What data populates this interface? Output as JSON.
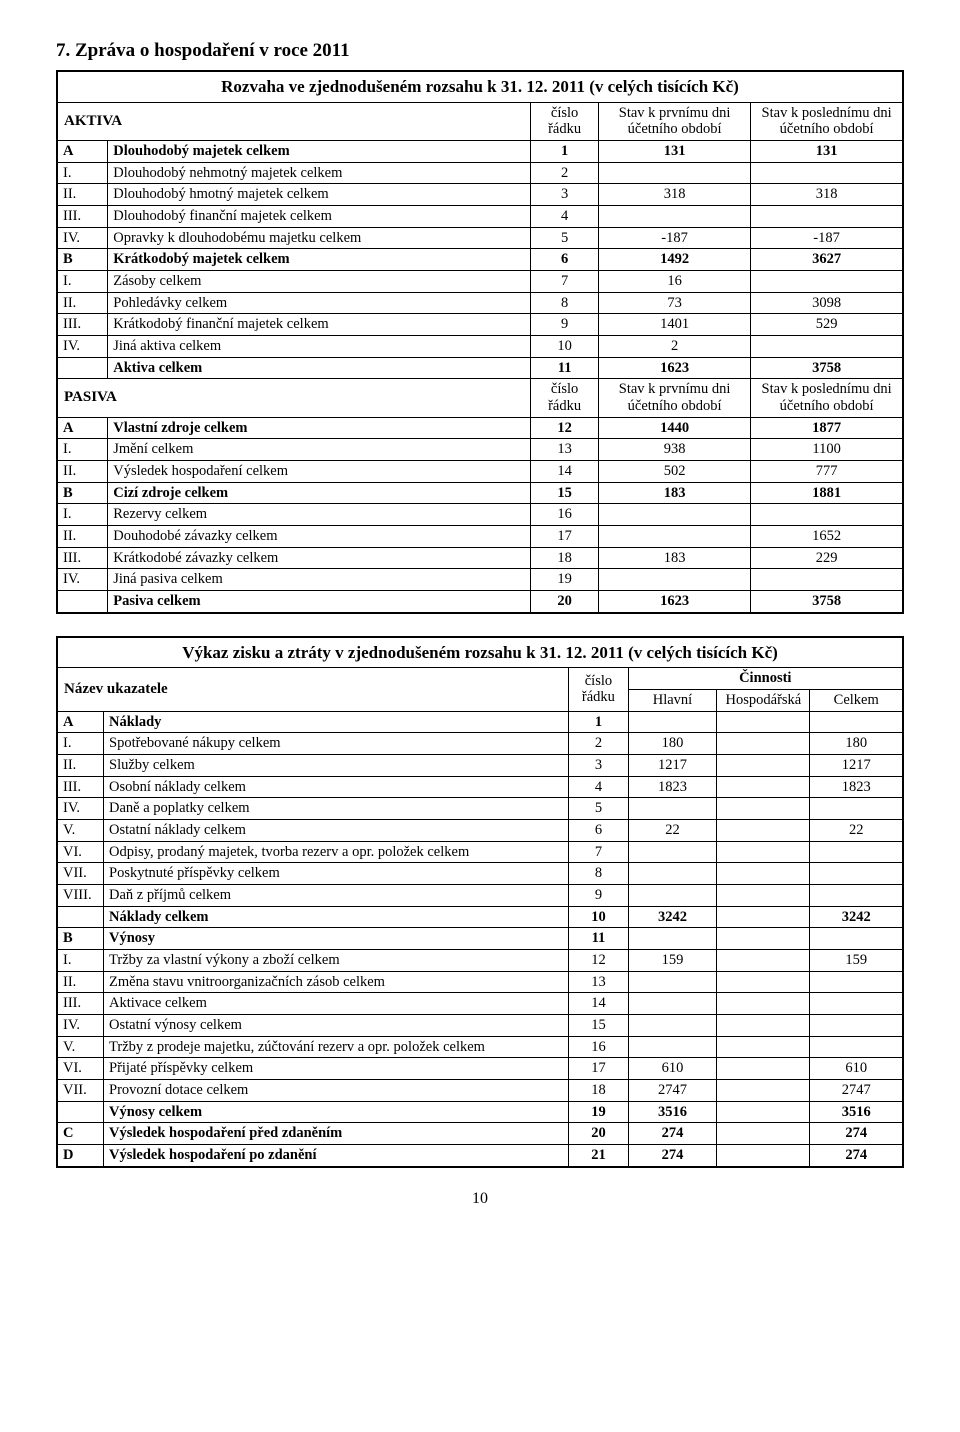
{
  "section_title": "7. Zpráva o hospodaření v roce 2011",
  "page_number": "10",
  "table1": {
    "caption": "Rozvaha ve zjednodušeném rozsahu k 31. 12. 2011 (v celých tisících Kč)",
    "head_aktiva": "AKTIVA",
    "head_pasiva": "PASIVA",
    "head_cislo": "číslo řádku",
    "head_first": "Stav k prvnímu dni účetního období",
    "head_last": "Stav k poslednímu dni účetního období",
    "aktiva_rows": [
      {
        "code": "A",
        "label": "Dlouhodobý majetek celkem",
        "n": "1",
        "a": "131",
        "b": "131",
        "bold": true
      },
      {
        "code": "I.",
        "label": "Dlouhodobý nehmotný majetek celkem",
        "n": "2",
        "a": "",
        "b": ""
      },
      {
        "code": "II.",
        "label": "Dlouhodobý hmotný majetek celkem",
        "n": "3",
        "a": "318",
        "b": "318"
      },
      {
        "code": "III.",
        "label": "Dlouhodobý finanční majetek celkem",
        "n": "4",
        "a": "",
        "b": ""
      },
      {
        "code": "IV.",
        "label": "Opravky k dlouhodobému majetku celkem",
        "n": "5",
        "a": "-187",
        "b": "-187"
      },
      {
        "code": "B",
        "label": "Krátkodobý majetek celkem",
        "n": "6",
        "a": "1492",
        "b": "3627",
        "bold": true
      },
      {
        "code": "I.",
        "label": "Zásoby celkem",
        "n": "7",
        "a": "16",
        "b": ""
      },
      {
        "code": "II.",
        "label": "Pohledávky celkem",
        "n": "8",
        "a": "73",
        "b": "3098"
      },
      {
        "code": "III.",
        "label": "Krátkodobý finanční majetek celkem",
        "n": "9",
        "a": "1401",
        "b": "529"
      },
      {
        "code": "IV.",
        "label": "Jiná aktiva celkem",
        "n": "10",
        "a": "2",
        "b": ""
      },
      {
        "code": "",
        "label": "Aktiva celkem",
        "n": "11",
        "a": "1623",
        "b": "3758",
        "bold": true
      }
    ],
    "pasiva_rows": [
      {
        "code": "A",
        "label": "Vlastní zdroje celkem",
        "n": "12",
        "a": "1440",
        "b": "1877",
        "bold": true
      },
      {
        "code": "I.",
        "label": "Jmění celkem",
        "n": "13",
        "a": "938",
        "b": "1100"
      },
      {
        "code": "II.",
        "label": "Výsledek hospodaření celkem",
        "n": "14",
        "a": "502",
        "b": "777"
      },
      {
        "code": "B",
        "label": "Cizí zdroje celkem",
        "n": "15",
        "a": "183",
        "b": "1881",
        "bold": true
      },
      {
        "code": "I.",
        "label": "Rezervy celkem",
        "n": "16",
        "a": "",
        "b": ""
      },
      {
        "code": "II.",
        "label": "Douhodobé závazky celkem",
        "n": "17",
        "a": "",
        "b": "1652"
      },
      {
        "code": "III.",
        "label": "Krátkodobé závazky celkem",
        "n": "18",
        "a": "183",
        "b": "229"
      },
      {
        "code": "IV.",
        "label": "Jiná pasiva celkem",
        "n": "19",
        "a": "",
        "b": ""
      },
      {
        "code": "",
        "label": "Pasiva celkem",
        "n": "20",
        "a": "1623",
        "b": "3758",
        "bold": true
      }
    ]
  },
  "table2": {
    "caption": "Výkaz zisku a ztráty v zjednodušeném rozsahu k 31. 12. 2011 (v celých tisících Kč)",
    "head_name": "Název ukazatele",
    "head_cislo": "číslo řádku",
    "head_cinnosti": "Činnosti",
    "head_hlavni": "Hlavní",
    "head_hosp": "Hospodářská",
    "head_celkem": "Celkem",
    "rows": [
      {
        "code": "A",
        "label": "Náklady",
        "n": "1",
        "h": "",
        "p": "",
        "c": "",
        "bold": true
      },
      {
        "code": "I.",
        "label": "Spotřebované nákupy celkem",
        "n": "2",
        "h": "180",
        "p": "",
        "c": "180"
      },
      {
        "code": "II.",
        "label": "Služby celkem",
        "n": "3",
        "h": "1217",
        "p": "",
        "c": "1217"
      },
      {
        "code": "III.",
        "label": "Osobní náklady celkem",
        "n": "4",
        "h": "1823",
        "p": "",
        "c": "1823"
      },
      {
        "code": "IV.",
        "label": "Daně a poplatky celkem",
        "n": "5",
        "h": "",
        "p": "",
        "c": ""
      },
      {
        "code": "V.",
        "label": "Ostatní náklady celkem",
        "n": "6",
        "h": "22",
        "p": "",
        "c": "22"
      },
      {
        "code": "VI.",
        "label": "Odpisy, prodaný majetek, tvorba rezerv a opr. položek celkem",
        "n": "7",
        "h": "",
        "p": "",
        "c": ""
      },
      {
        "code": "VII.",
        "label": "Poskytnuté příspěvky celkem",
        "n": "8",
        "h": "",
        "p": "",
        "c": ""
      },
      {
        "code": "VIII.",
        "label": "Daň z příjmů celkem",
        "n": "9",
        "h": "",
        "p": "",
        "c": ""
      },
      {
        "code": "",
        "label": "Náklady celkem",
        "n": "10",
        "h": "3242",
        "p": "",
        "c": "3242",
        "bold": true
      },
      {
        "code": "B",
        "label": "Výnosy",
        "n": "11",
        "h": "",
        "p": "",
        "c": "",
        "bold": true
      },
      {
        "code": "I.",
        "label": "Tržby za vlastní výkony a zboží celkem",
        "n": "12",
        "h": "159",
        "p": "",
        "c": "159"
      },
      {
        "code": "II.",
        "label": "Změna stavu vnitroorganizačních zásob celkem",
        "n": "13",
        "h": "",
        "p": "",
        "c": ""
      },
      {
        "code": "III.",
        "label": "Aktivace celkem",
        "n": "14",
        "h": "",
        "p": "",
        "c": ""
      },
      {
        "code": "IV.",
        "label": "Ostatní výnosy celkem",
        "n": "15",
        "h": "",
        "p": "",
        "c": ""
      },
      {
        "code": "V.",
        "label": "Tržby z prodeje majetku, zúčtování rezerv a opr. položek celkem",
        "n": "16",
        "h": "",
        "p": "",
        "c": ""
      },
      {
        "code": "VI.",
        "label": "Přijaté příspěvky celkem",
        "n": "17",
        "h": "610",
        "p": "",
        "c": "610"
      },
      {
        "code": "VII.",
        "label": "Provozní dotace celkem",
        "n": "18",
        "h": "2747",
        "p": "",
        "c": "2747"
      },
      {
        "code": "",
        "label": "Výnosy celkem",
        "n": "19",
        "h": "3516",
        "p": "",
        "c": "3516",
        "bold": true
      },
      {
        "code": "C",
        "label": "Výsledek hospodaření před zdaněním",
        "n": "20",
        "h": "274",
        "p": "",
        "c": "274",
        "bold": true
      },
      {
        "code": "D",
        "label": "Výsledek hospodaření po zdanění",
        "n": "21",
        "h": "274",
        "p": "",
        "c": "274",
        "bold": true
      }
    ]
  }
}
